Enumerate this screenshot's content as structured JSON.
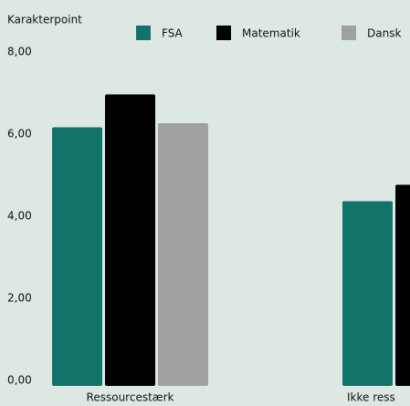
{
  "chart_data": {
    "type": "bar",
    "y_axis_label": "Karakterpoint",
    "categories": [
      "Ressourcestærk",
      "Ikke ress"
    ],
    "series": [
      {
        "name": "FSA",
        "color": "#12736a",
        "values": [
          6.3,
          4.5
        ]
      },
      {
        "name": "Matematik",
        "color": "#000000",
        "values": [
          7.1,
          4.9
        ]
      },
      {
        "name": "Dansk",
        "color": "#a0a0a0",
        "values": [
          6.4,
          null
        ]
      }
    ],
    "ylim": [
      0,
      8
    ],
    "yticks": [
      {
        "value": 0,
        "label": "0,00"
      },
      {
        "value": 2,
        "label": "2,00"
      },
      {
        "value": 4,
        "label": "4,00"
      },
      {
        "value": 6,
        "label": "6,00"
      },
      {
        "value": 8,
        "label": "8,00"
      }
    ],
    "grid": false
  }
}
